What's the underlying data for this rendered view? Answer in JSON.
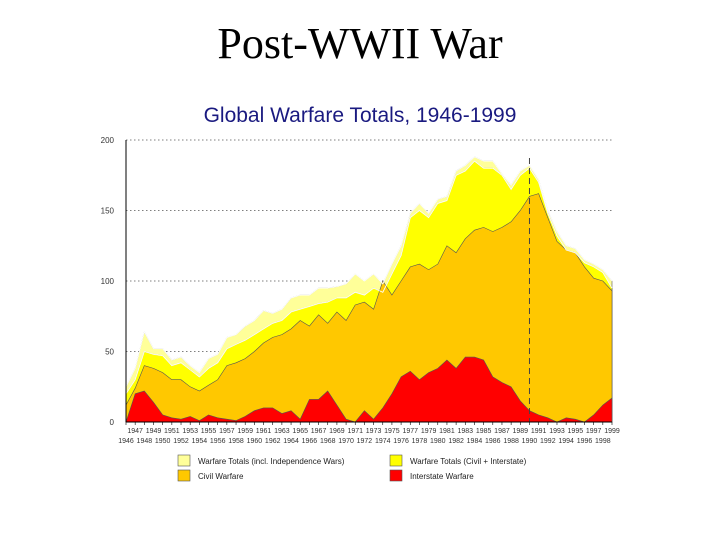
{
  "slide": {
    "title": "Post-WWII War"
  },
  "chart_data": {
    "type": "area",
    "title": "Global Warfare Totals, 1946-1999",
    "xlabel": "",
    "ylabel": "",
    "xlim": [
      1946,
      1999
    ],
    "ylim": [
      0,
      200
    ],
    "yticks": [
      0,
      50,
      100,
      150,
      200
    ],
    "grid": true,
    "legend_position": "bottom",
    "reference_line_year": 1990,
    "x_ticks_top": [
      "1947",
      "1949",
      "1951",
      "1953",
      "1955",
      "1957",
      "1959",
      "1961",
      "1963",
      "1965",
      "1967",
      "1969",
      "1971",
      "1973",
      "1975",
      "1977",
      "1979",
      "1981",
      "1983",
      "1985",
      "1987",
      "1989",
      "1991",
      "1993",
      "1995",
      "1997",
      "1999"
    ],
    "x_ticks_bottom": [
      "1946",
      "1948",
      "1950",
      "1952",
      "1954",
      "1956",
      "1958",
      "1960",
      "1962",
      "1964",
      "1966",
      "1968",
      "1970",
      "1972",
      "1974",
      "1976",
      "1978",
      "1980",
      "1982",
      "1984",
      "1986",
      "1988",
      "1990",
      "1992",
      "1994",
      "1996",
      "1998"
    ],
    "x": [
      1946,
      1947,
      1948,
      1949,
      1950,
      1951,
      1952,
      1953,
      1954,
      1955,
      1956,
      1957,
      1958,
      1959,
      1960,
      1961,
      1962,
      1963,
      1964,
      1965,
      1966,
      1967,
      1968,
      1969,
      1970,
      1971,
      1972,
      1973,
      1974,
      1975,
      1976,
      1977,
      1978,
      1979,
      1980,
      1981,
      1982,
      1983,
      1984,
      1985,
      1986,
      1987,
      1988,
      1989,
      1990,
      1991,
      1992,
      1993,
      1994,
      1995,
      1996,
      1997,
      1998,
      1999
    ],
    "series": [
      {
        "name": "Warfare Totals (incl. Independence Wars)",
        "color": "#ffff99",
        "values": [
          25,
          38,
          64,
          52,
          52,
          44,
          46,
          40,
          35,
          45,
          48,
          60,
          62,
          68,
          72,
          79,
          77,
          80,
          88,
          90,
          90,
          95,
          95,
          96,
          98,
          105,
          100,
          105,
          98,
          112,
          125,
          148,
          155,
          148,
          158,
          160,
          178,
          182,
          188,
          185,
          185,
          176,
          168,
          178,
          182,
          172,
          150,
          135,
          125,
          123,
          115,
          112,
          108,
          100
        ]
      },
      {
        "name": "Warfare Totals (Civil + Interstate)",
        "color": "#ffff00",
        "values": [
          20,
          30,
          50,
          48,
          47,
          40,
          42,
          37,
          32,
          38,
          42,
          52,
          55,
          58,
          62,
          66,
          70,
          72,
          78,
          80,
          82,
          84,
          85,
          88,
          88,
          92,
          90,
          95,
          92,
          105,
          118,
          145,
          150,
          145,
          155,
          157,
          175,
          178,
          185,
          180,
          180,
          175,
          165,
          175,
          180,
          170,
          148,
          132,
          122,
          120,
          113,
          110,
          106,
          95
        ]
      },
      {
        "name": "Civil Warfare",
        "color": "#ffc800",
        "values": [
          12,
          24,
          40,
          38,
          35,
          30,
          30,
          25,
          22,
          26,
          30,
          40,
          42,
          45,
          50,
          56,
          60,
          62,
          66,
          72,
          68,
          76,
          70,
          78,
          72,
          83,
          85,
          80,
          100,
          90,
          100,
          110,
          112,
          108,
          112,
          125,
          120,
          130,
          136,
          138,
          135,
          138,
          142,
          150,
          160,
          162,
          145,
          128,
          122,
          120,
          110,
          102,
          100,
          93
        ]
      },
      {
        "name": "Interstate Warfare",
        "color": "#ff0000",
        "values": [
          0,
          20,
          22,
          14,
          5,
          3,
          2,
          4,
          1,
          5,
          3,
          2,
          1,
          4,
          8,
          10,
          10,
          6,
          8,
          2,
          16,
          16,
          22,
          12,
          2,
          0,
          8,
          2,
          10,
          20,
          32,
          36,
          30,
          35,
          38,
          44,
          38,
          46,
          46,
          44,
          32,
          28,
          25,
          15,
          8,
          5,
          3,
          0,
          3,
          2,
          0,
          5,
          12,
          17
        ]
      }
    ]
  }
}
